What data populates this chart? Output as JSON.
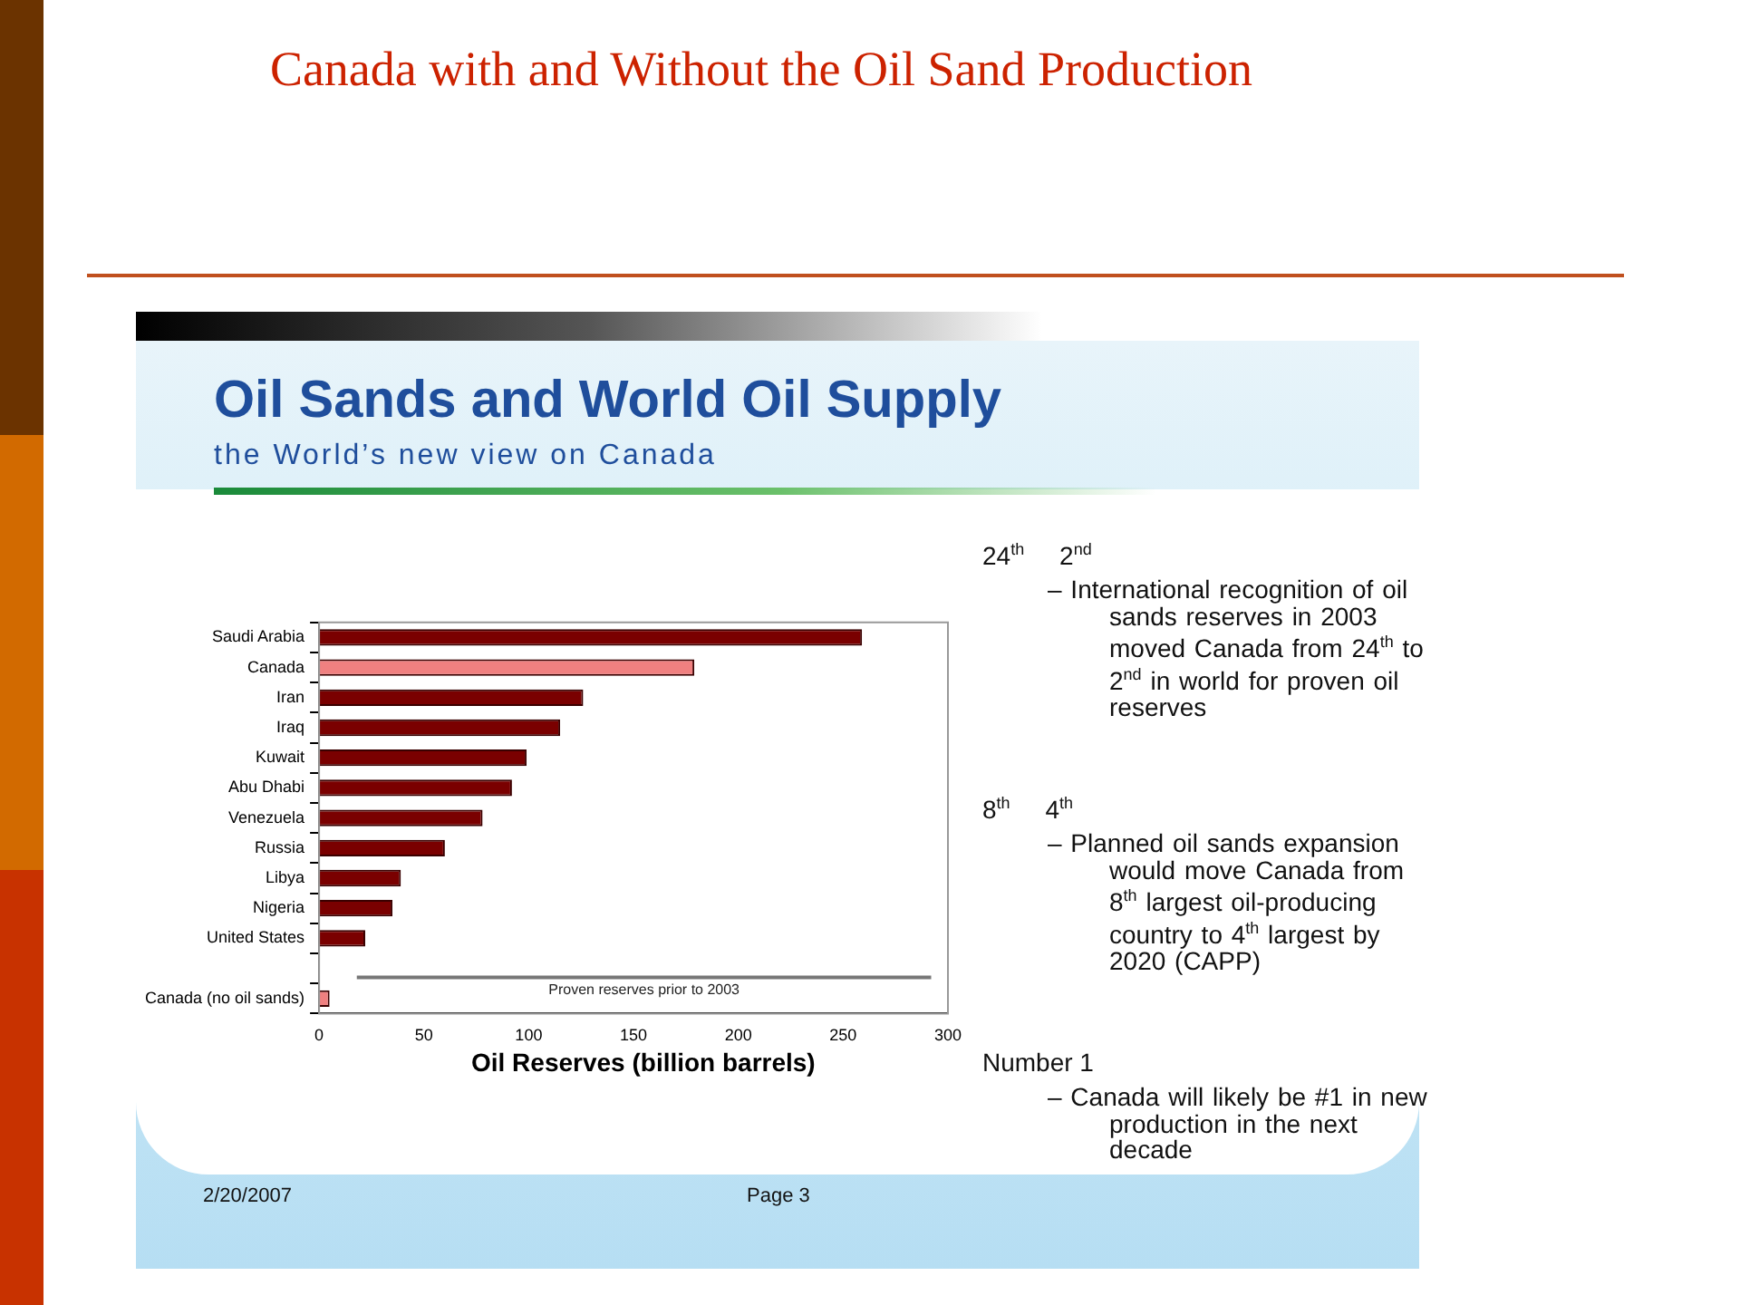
{
  "chart_data": {
    "type": "bar",
    "orientation": "horizontal",
    "title": "Canada with and Without the Oil Sand Production",
    "subtitle": "Oil Sands and World Oil Supply",
    "xlabel": "Oil Reserves (billion barrels)",
    "categories": [
      "Saudi Arabia",
      "Canada",
      "Iran",
      "Iraq",
      "Kuwait",
      "Abu Dhabi",
      "Venezuela",
      "Russia",
      "Libya",
      "Nigeria",
      "United States",
      null,
      "Canada (no oil sands)"
    ],
    "values": [
      259,
      179,
      126,
      115,
      99,
      92,
      78,
      60,
      39,
      35,
      22,
      null,
      5
    ],
    "colors": [
      "#7a0000",
      "#f08080",
      "#7a0000",
      "#7a0000",
      "#7a0000",
      "#7a0000",
      "#7a0000",
      "#7a0000",
      "#7a0000",
      "#7a0000",
      "#7a0000",
      "#7a0000",
      "#f08080"
    ],
    "xlim": [
      0,
      300
    ],
    "xticks": [
      0,
      50,
      100,
      150,
      200,
      250,
      300
    ],
    "grid": false,
    "legend": false,
    "annotations": [
      "the World’s new view on Canada",
      "24$^{th}$     2$^{nd}$",
      "– International recognition of oil sands reserves in 2003 moved Canada from 24$^{th}$ to 2$^{nd}$ in world for proven oil reserves",
      "8$^{th}$     4$^{th}$",
      "– Planned oil sands expansion would move Canada from 8$^{th}$ largest oil-producing country to 4$^{th}$ largest by 2020 (CAPP)",
      "Number 1",
      "– Canada will likely be #1 in new production in the next decade",
      "Proven reserves prior to 2003",
      "2/20/2007",
      "Page 3"
    ]
  }
}
